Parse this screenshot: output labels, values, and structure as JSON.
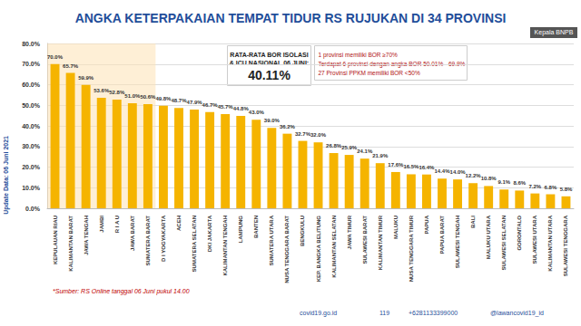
{
  "chart_data": {
    "type": "bar",
    "title": "ANGKA KETERPAKAIAN TEMPAT TIDUR RS RUJUKAN DI 34 PROVINSI",
    "categories": [
      "KEPULAUAN RIAU",
      "KALIMANTAN BARAT",
      "JAWA TENGAH",
      "JAMBI",
      "R I A U",
      "JAWA BARAT",
      "SUMATERA BARAT",
      "D I YOGYAKARTA",
      "ACEH",
      "SUMATERA SELATAN",
      "DKI JAKARTA",
      "KALIMANTAN TENGAH",
      "LAMPUNG",
      "BANTEN",
      "SUMATERA UTARA",
      "NUSA TENGGARA BARAT",
      "BENGKULU",
      "KEP. BANGKA BELITUNG",
      "KALIMANTAN SELATAN",
      "JAWA TIMUR",
      "SULAWESI BARAT",
      "KALIMANTAN TIMUR",
      "MALUKU",
      "NUSA TENGGARA TIMUR",
      "PAPUA",
      "PAPUA BARAT",
      "SULAWESI TENGAH",
      "BALI",
      "MALUKU UTARA",
      "SULAWESI SELATAN",
      "GORONTALO",
      "SULAWESI UTARA",
      "KALIMANTAN UTARA",
      "SULAWESI TENGGARA"
    ],
    "values": [
      70.0,
      65.7,
      59.9,
      53.6,
      52.8,
      51.0,
      50.6,
      49.8,
      48.7,
      47.9,
      46.7,
      45.7,
      44.8,
      43.0,
      39.0,
      36.2,
      32.7,
      32.0,
      26.8,
      25.9,
      24.1,
      21.9,
      17.6,
      16.5,
      16.4,
      14.4,
      14.0,
      12.2,
      10.8,
      9.1,
      8.6,
      7.2,
      6.8,
      5.8
    ],
    "value_labels": [
      "70.0%",
      "65.7%",
      "59.9%",
      "53.6%",
      "52.8%",
      "51.0%",
      "50.6%",
      "49.8%",
      "48.7%",
      "47.9%",
      "46.7%",
      "45.7%",
      "44.8%",
      "43.0%",
      "39.0%",
      "36.2%",
      "32.7%",
      "32.0%",
      "26.8%",
      "25.9%",
      "24.1%",
      "21.9%",
      "17.6%",
      "16.5%",
      "16.4%",
      "14.4%",
      "14.0%",
      "12.2%",
      "10.8%",
      "9.1%",
      "8.6%",
      "7.2%",
      "6.8%",
      "5.8%"
    ],
    "color": "#F5B400",
    "ylim": [
      0,
      80
    ],
    "yticks": [
      {
        "value": 0,
        "label": "0.0%"
      },
      {
        "value": 10,
        "label": "10.0%"
      },
      {
        "value": 20,
        "label": "20.0%"
      },
      {
        "value": 30,
        "label": "30.0%"
      },
      {
        "value": 40,
        "label": "40.0%"
      },
      {
        "value": 50,
        "label": "50.0%"
      },
      {
        "value": 60,
        "label": "60.0%"
      },
      {
        "value": 70,
        "label": "70.0%"
      },
      {
        "value": 80,
        "label": "80.0%"
      }
    ],
    "grid": true,
    "data_labels": true,
    "annotations": {
      "average_box": {
        "title": [
          "RATA-RATA BOR ISOLASI",
          "& ICU NASIONAL 06 JUNI:"
        ],
        "value": "40.11%"
      },
      "summary_box": [
        "1 provinsi memiliki BOR ≥70%",
        "Terdapat 6 provinsi dengan angka BOR 50.01% - 69.9%",
        "27 Provinsi PPKM memiliki BOR <50%"
      ],
      "update_note": "Update Data: 06 Juni 2021",
      "source": "*Sumber: RS Online tanggal 06 Juni pukul 14.00",
      "presenter": "Kepala BNPB",
      "footer": [
        "covid19.go.id",
        "119",
        "+6281133399000",
        "@lawancovid19_id"
      ]
    }
  }
}
